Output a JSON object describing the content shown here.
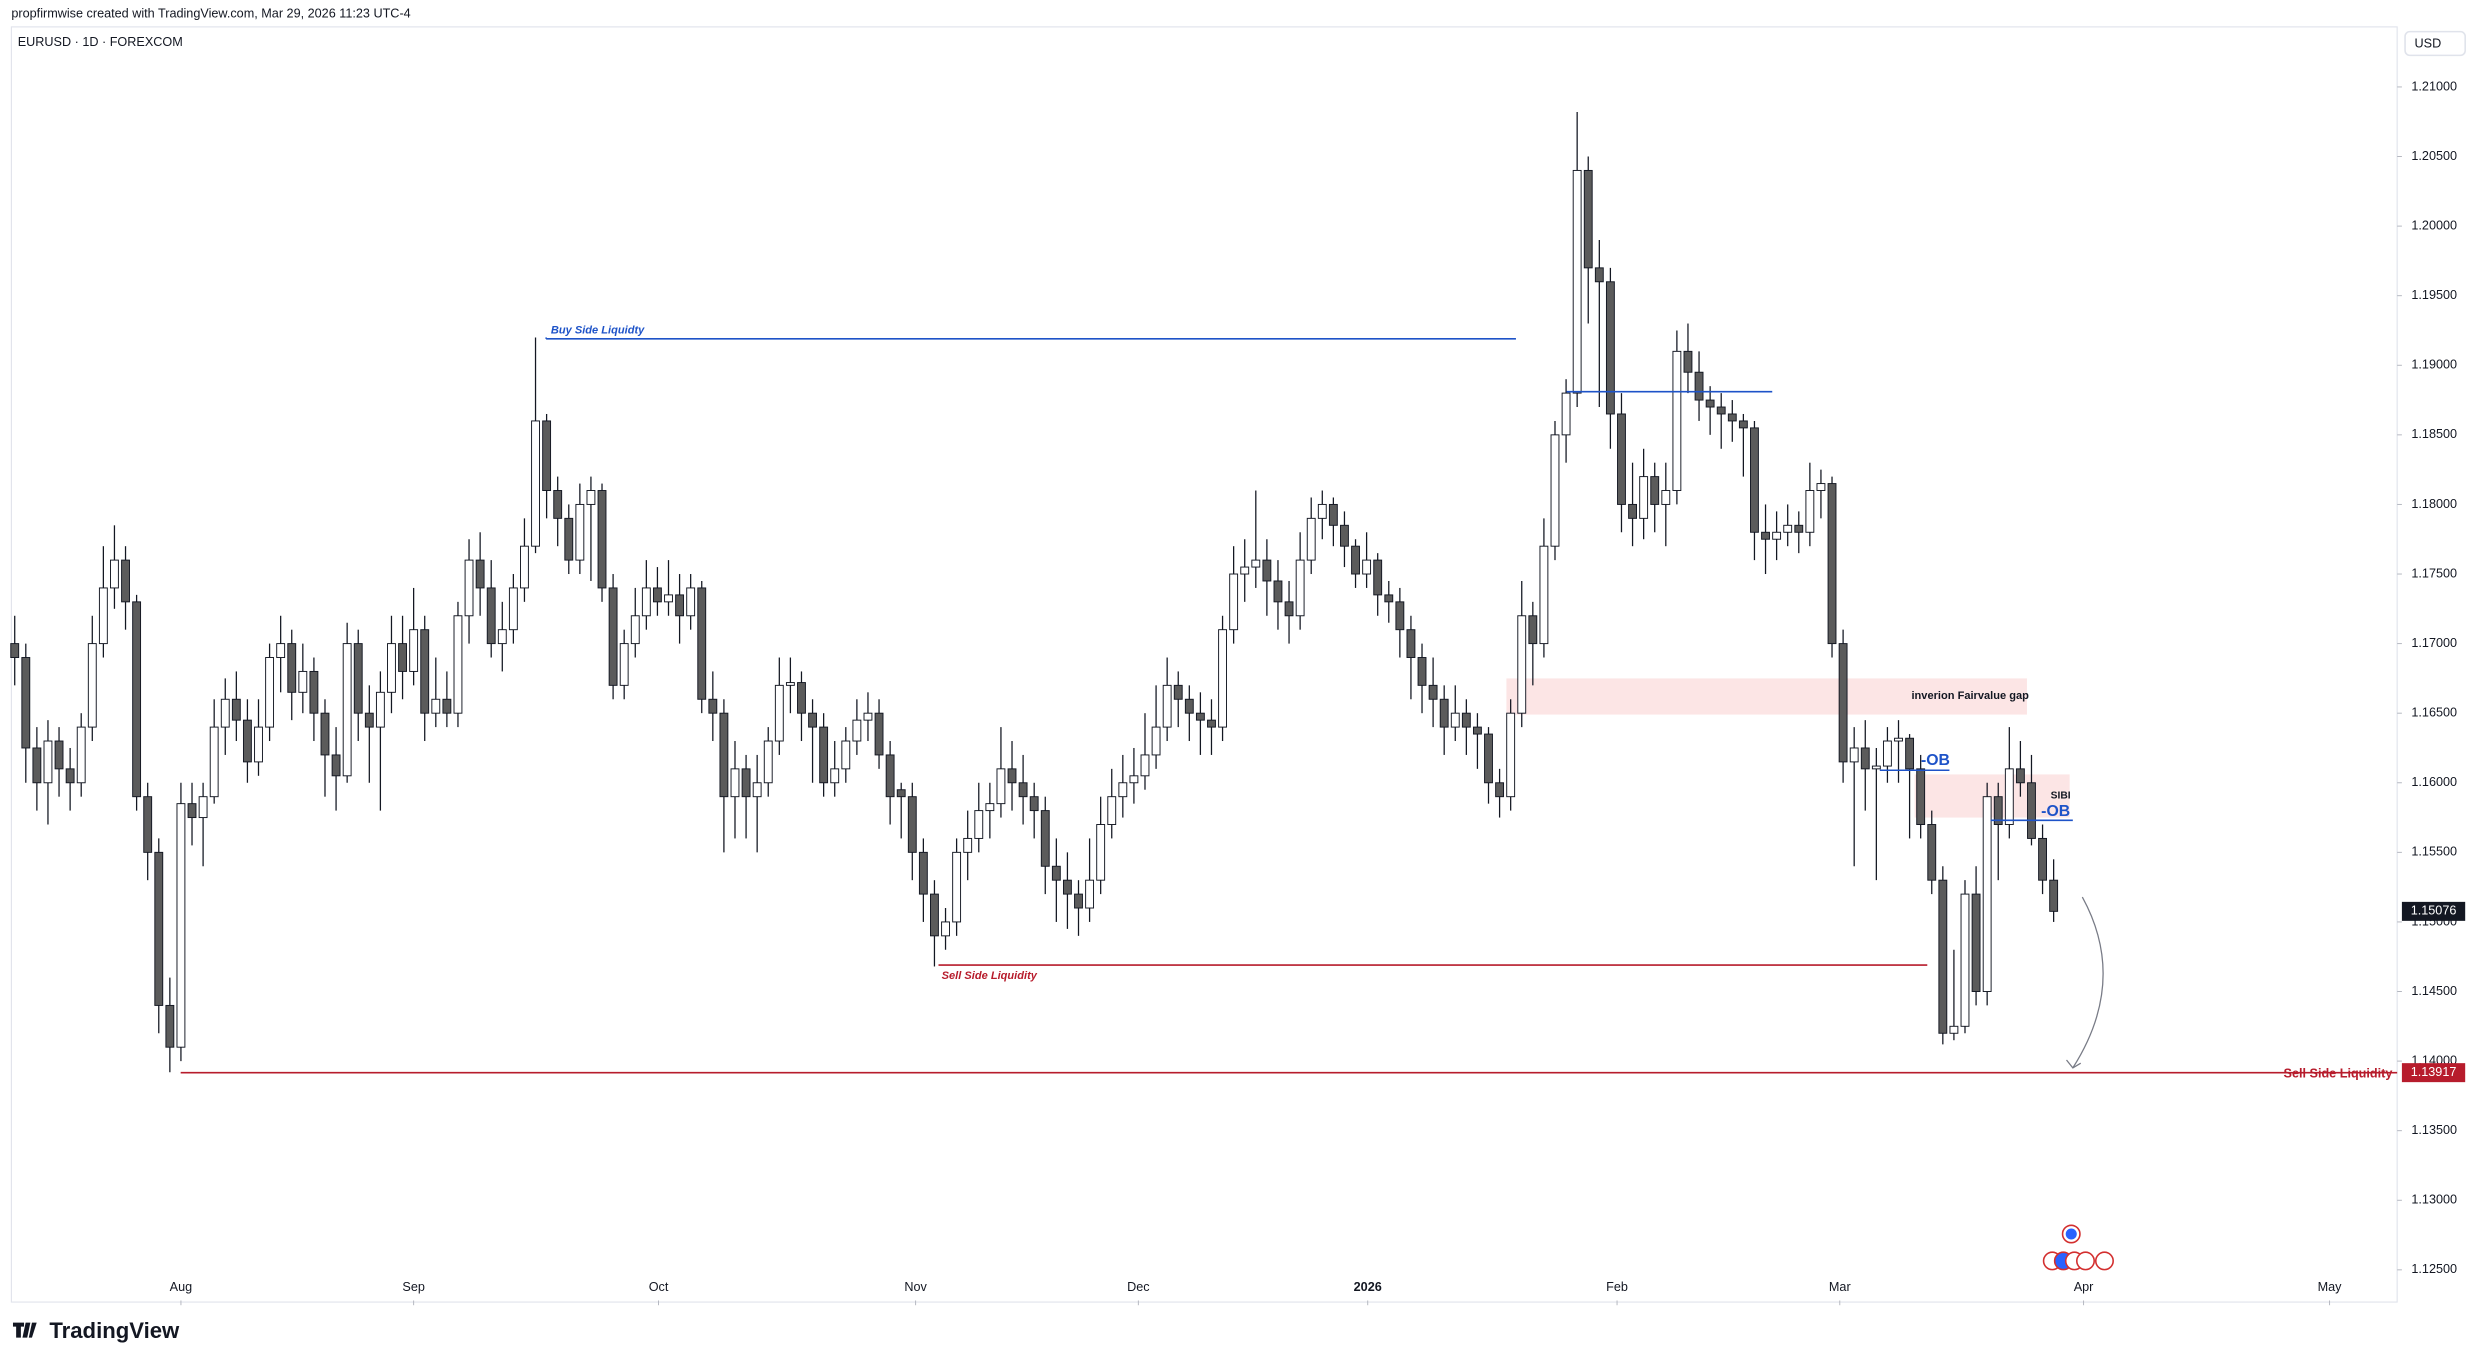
{
  "header": {
    "credit": "propfirmwise created with TradingView.com, Mar 29, 2026 11:23 UTC-4",
    "symbol": "EURUSD · 1D · FOREXCOM",
    "currency": "USD",
    "brand": "TradingView"
  },
  "chart_data": {
    "type": "candlestick",
    "up_color": "#ffffff",
    "down_color": "#5b5b5b",
    "wick_color": "#131722",
    "grid": false,
    "xlim": [
      -0.3,
      215
    ],
    "ylim": [
      1.1228,
      1.2117
    ],
    "xticks": [
      {
        "value": 15,
        "label": "Aug"
      },
      {
        "value": 36,
        "label": "Sep"
      },
      {
        "value": 58.1,
        "label": "Oct"
      },
      {
        "value": 81.3,
        "label": "Nov"
      },
      {
        "value": 101.4,
        "label": "Dec"
      },
      {
        "value": 122.1,
        "label": "2026"
      },
      {
        "value": 144.6,
        "label": "Feb"
      },
      {
        "value": 164.7,
        "label": "Mar"
      },
      {
        "value": 186.7,
        "label": "Apr"
      },
      {
        "value": 208.9,
        "label": "May"
      }
    ],
    "yticks": [
      {
        "value": 1.125,
        "label": "1.12500"
      },
      {
        "value": 1.13,
        "label": "1.13000"
      },
      {
        "value": 1.135,
        "label": "1.13500"
      },
      {
        "value": 1.14,
        "label": "1.14000"
      },
      {
        "value": 1.145,
        "label": "1.14500"
      },
      {
        "value": 1.15,
        "label": "1.15000"
      },
      {
        "value": 1.155,
        "label": "1.15500"
      },
      {
        "value": 1.16,
        "label": "1.16000"
      },
      {
        "value": 1.165,
        "label": "1.16500"
      },
      {
        "value": 1.17,
        "label": "1.17000"
      },
      {
        "value": 1.175,
        "label": "1.17500"
      },
      {
        "value": 1.18,
        "label": "1.18000"
      },
      {
        "value": 1.185,
        "label": "1.18500"
      },
      {
        "value": 1.19,
        "label": "1.19000"
      },
      {
        "value": 1.195,
        "label": "1.19500"
      },
      {
        "value": 1.2,
        "label": "1.20000"
      },
      {
        "value": 1.205,
        "label": "1.20500"
      },
      {
        "value": 1.21,
        "label": "1.21000"
      }
    ],
    "ohlc": [
      [
        1.17,
        1.172,
        1.167,
        1.169
      ],
      [
        1.169,
        1.17,
        1.16,
        1.1625
      ],
      [
        1.1625,
        1.164,
        1.158,
        1.16
      ],
      [
        1.16,
        1.1645,
        1.157,
        1.163
      ],
      [
        1.163,
        1.164,
        1.159,
        1.161
      ],
      [
        1.161,
        1.1625,
        1.158,
        1.16
      ],
      [
        1.16,
        1.165,
        1.159,
        1.164
      ],
      [
        1.164,
        1.172,
        1.163,
        1.17
      ],
      [
        1.17,
        1.177,
        1.169,
        1.174
      ],
      [
        1.174,
        1.1785,
        1.1725,
        1.176
      ],
      [
        1.176,
        1.177,
        1.171,
        1.173
      ],
      [
        1.173,
        1.1735,
        1.158,
        1.159
      ],
      [
        1.159,
        1.16,
        1.153,
        1.155
      ],
      [
        1.155,
        1.156,
        1.142,
        1.144
      ],
      [
        1.144,
        1.146,
        1.1392,
        1.141
      ],
      [
        1.141,
        1.16,
        1.14,
        1.1585
      ],
      [
        1.1585,
        1.16,
        1.1555,
        1.1575
      ],
      [
        1.1575,
        1.16,
        1.154,
        1.159
      ],
      [
        1.159,
        1.166,
        1.1585,
        1.164
      ],
      [
        1.164,
        1.1675,
        1.162,
        1.166
      ],
      [
        1.166,
        1.168,
        1.163,
        1.1645
      ],
      [
        1.1645,
        1.166,
        1.16,
        1.1615
      ],
      [
        1.1615,
        1.166,
        1.1605,
        1.164
      ],
      [
        1.164,
        1.17,
        1.163,
        1.169
      ],
      [
        1.169,
        1.172,
        1.1665,
        1.17
      ],
      [
        1.17,
        1.171,
        1.1645,
        1.1665
      ],
      [
        1.1665,
        1.17,
        1.165,
        1.168
      ],
      [
        1.168,
        1.169,
        1.163,
        1.165
      ],
      [
        1.165,
        1.166,
        1.159,
        1.162
      ],
      [
        1.162,
        1.164,
        1.158,
        1.1605
      ],
      [
        1.1605,
        1.1715,
        1.16,
        1.17
      ],
      [
        1.17,
        1.171,
        1.163,
        1.165
      ],
      [
        1.165,
        1.167,
        1.16,
        1.164
      ],
      [
        1.164,
        1.168,
        1.158,
        1.1665
      ],
      [
        1.1665,
        1.172,
        1.165,
        1.17
      ],
      [
        1.17,
        1.172,
        1.166,
        1.168
      ],
      [
        1.168,
        1.174,
        1.167,
        1.171
      ],
      [
        1.171,
        1.172,
        1.163,
        1.165
      ],
      [
        1.165,
        1.169,
        1.164,
        1.166
      ],
      [
        1.166,
        1.168,
        1.164,
        1.165
      ],
      [
        1.165,
        1.173,
        1.164,
        1.172
      ],
      [
        1.172,
        1.1775,
        1.17,
        1.176
      ],
      [
        1.176,
        1.178,
        1.172,
        1.174
      ],
      [
        1.174,
        1.176,
        1.169,
        1.17
      ],
      [
        1.17,
        1.173,
        1.168,
        1.171
      ],
      [
        1.171,
        1.175,
        1.17,
        1.174
      ],
      [
        1.174,
        1.179,
        1.173,
        1.177
      ],
      [
        1.177,
        1.192,
        1.1765,
        1.186
      ],
      [
        1.186,
        1.1865,
        1.179,
        1.181
      ],
      [
        1.181,
        1.182,
        1.177,
        1.179
      ],
      [
        1.179,
        1.18,
        1.175,
        1.176
      ],
      [
        1.176,
        1.1815,
        1.175,
        1.18
      ],
      [
        1.18,
        1.182,
        1.1745,
        1.181
      ],
      [
        1.181,
        1.1815,
        1.173,
        1.174
      ],
      [
        1.174,
        1.175,
        1.166,
        1.167
      ],
      [
        1.167,
        1.171,
        1.166,
        1.17
      ],
      [
        1.17,
        1.174,
        1.169,
        1.172
      ],
      [
        1.172,
        1.176,
        1.171,
        1.174
      ],
      [
        1.174,
        1.1755,
        1.172,
        1.173
      ],
      [
        1.173,
        1.176,
        1.172,
        1.1735
      ],
      [
        1.1735,
        1.175,
        1.17,
        1.172
      ],
      [
        1.172,
        1.175,
        1.171,
        1.174
      ],
      [
        1.174,
        1.1745,
        1.165,
        1.166
      ],
      [
        1.166,
        1.168,
        1.163,
        1.165
      ],
      [
        1.165,
        1.166,
        1.155,
        1.159
      ],
      [
        1.159,
        1.163,
        1.156,
        1.161
      ],
      [
        1.161,
        1.162,
        1.156,
        1.159
      ],
      [
        1.159,
        1.162,
        1.155,
        1.16
      ],
      [
        1.16,
        1.164,
        1.159,
        1.163
      ],
      [
        1.163,
        1.169,
        1.162,
        1.167
      ],
      [
        1.167,
        1.169,
        1.165,
        1.1672
      ],
      [
        1.1672,
        1.168,
        1.163,
        1.165
      ],
      [
        1.165,
        1.166,
        1.16,
        1.164
      ],
      [
        1.164,
        1.165,
        1.159,
        1.16
      ],
      [
        1.16,
        1.163,
        1.159,
        1.161
      ],
      [
        1.161,
        1.164,
        1.16,
        1.163
      ],
      [
        1.163,
        1.166,
        1.162,
        1.1645
      ],
      [
        1.1645,
        1.1665,
        1.163,
        1.165
      ],
      [
        1.165,
        1.166,
        1.161,
        1.162
      ],
      [
        1.162,
        1.163,
        1.157,
        1.159
      ],
      [
        1.1595,
        1.16,
        1.156,
        1.159
      ],
      [
        1.159,
        1.16,
        1.153,
        1.155
      ],
      [
        1.155,
        1.156,
        1.15,
        1.152
      ],
      [
        1.152,
        1.153,
        1.1468,
        1.149
      ],
      [
        1.149,
        1.151,
        1.148,
        1.15
      ],
      [
        1.15,
        1.156,
        1.149,
        1.155
      ],
      [
        1.155,
        1.158,
        1.153,
        1.156
      ],
      [
        1.156,
        1.16,
        1.155,
        1.158
      ],
      [
        1.158,
        1.16,
        1.156,
        1.1585
      ],
      [
        1.1585,
        1.164,
        1.1575,
        1.161
      ],
      [
        1.161,
        1.163,
        1.158,
        1.16
      ],
      [
        1.16,
        1.162,
        1.157,
        1.159
      ],
      [
        1.159,
        1.16,
        1.156,
        1.158
      ],
      [
        1.158,
        1.159,
        1.152,
        1.154
      ],
      [
        1.154,
        1.156,
        1.15,
        1.153
      ],
      [
        1.153,
        1.155,
        1.1495,
        1.152
      ],
      [
        1.152,
        1.153,
        1.149,
        1.151
      ],
      [
        1.151,
        1.156,
        1.15,
        1.153
      ],
      [
        1.153,
        1.159,
        1.152,
        1.157
      ],
      [
        1.157,
        1.161,
        1.156,
        1.159
      ],
      [
        1.159,
        1.162,
        1.1575,
        1.16
      ],
      [
        1.16,
        1.1625,
        1.1585,
        1.1605
      ],
      [
        1.1605,
        1.165,
        1.1595,
        1.162
      ],
      [
        1.162,
        1.167,
        1.161,
        1.164
      ],
      [
        1.164,
        1.169,
        1.163,
        1.167
      ],
      [
        1.167,
        1.168,
        1.164,
        1.166
      ],
      [
        1.166,
        1.167,
        1.163,
        1.165
      ],
      [
        1.165,
        1.1665,
        1.162,
        1.1645
      ],
      [
        1.1645,
        1.166,
        1.162,
        1.164
      ],
      [
        1.164,
        1.172,
        1.163,
        1.171
      ],
      [
        1.171,
        1.177,
        1.17,
        1.175
      ],
      [
        1.175,
        1.1775,
        1.173,
        1.1755
      ],
      [
        1.1755,
        1.181,
        1.174,
        1.176
      ],
      [
        1.176,
        1.1775,
        1.172,
        1.1745
      ],
      [
        1.1745,
        1.176,
        1.171,
        1.173
      ],
      [
        1.173,
        1.1745,
        1.17,
        1.172
      ],
      [
        1.172,
        1.178,
        1.171,
        1.176
      ],
      [
        1.176,
        1.1805,
        1.175,
        1.179
      ],
      [
        1.179,
        1.181,
        1.1775,
        1.18
      ],
      [
        1.18,
        1.1805,
        1.177,
        1.1785
      ],
      [
        1.1785,
        1.1795,
        1.1755,
        1.177
      ],
      [
        1.177,
        1.1775,
        1.174,
        1.175
      ],
      [
        1.175,
        1.178,
        1.174,
        1.176
      ],
      [
        1.176,
        1.1765,
        1.172,
        1.1735
      ],
      [
        1.1735,
        1.1745,
        1.1715,
        1.173
      ],
      [
        1.173,
        1.174,
        1.169,
        1.171
      ],
      [
        1.171,
        1.172,
        1.166,
        1.169
      ],
      [
        1.169,
        1.17,
        1.165,
        1.167
      ],
      [
        1.167,
        1.169,
        1.164,
        1.166
      ],
      [
        1.166,
        1.167,
        1.162,
        1.164
      ],
      [
        1.164,
        1.167,
        1.163,
        1.165
      ],
      [
        1.165,
        1.166,
        1.162,
        1.164
      ],
      [
        1.164,
        1.165,
        1.161,
        1.1635
      ],
      [
        1.1635,
        1.164,
        1.1585,
        1.16
      ],
      [
        1.16,
        1.161,
        1.1575,
        1.159
      ],
      [
        1.159,
        1.166,
        1.158,
        1.165
      ],
      [
        1.165,
        1.1745,
        1.164,
        1.172
      ],
      [
        1.172,
        1.173,
        1.167,
        1.17
      ],
      [
        1.17,
        1.179,
        1.169,
        1.177
      ],
      [
        1.177,
        1.186,
        1.176,
        1.185
      ],
      [
        1.185,
        1.189,
        1.183,
        1.188
      ],
      [
        1.188,
        1.2082,
        1.187,
        1.204
      ],
      [
        1.204,
        1.205,
        1.193,
        1.197
      ],
      [
        1.197,
        1.199,
        1.187,
        1.196
      ],
      [
        1.196,
        1.197,
        1.184,
        1.1865
      ],
      [
        1.1865,
        1.188,
        1.178,
        1.18
      ],
      [
        1.18,
        1.183,
        1.177,
        1.179
      ],
      [
        1.179,
        1.184,
        1.1775,
        1.182
      ],
      [
        1.182,
        1.183,
        1.178,
        1.18
      ],
      [
        1.18,
        1.183,
        1.177,
        1.181
      ],
      [
        1.181,
        1.1925,
        1.18,
        1.191
      ],
      [
        1.191,
        1.193,
        1.188,
        1.1895
      ],
      [
        1.1895,
        1.191,
        1.186,
        1.1875
      ],
      [
        1.1875,
        1.1885,
        1.185,
        1.187
      ],
      [
        1.187,
        1.188,
        1.184,
        1.1865
      ],
      [
        1.1865,
        1.1875,
        1.1845,
        1.186
      ],
      [
        1.186,
        1.1865,
        1.182,
        1.1855
      ],
      [
        1.1855,
        1.186,
        1.176,
        1.178
      ],
      [
        1.178,
        1.18,
        1.175,
        1.1775
      ],
      [
        1.1775,
        1.1795,
        1.176,
        1.178
      ],
      [
        1.178,
        1.18,
        1.177,
        1.1785
      ],
      [
        1.1785,
        1.1795,
        1.1765,
        1.178
      ],
      [
        1.178,
        1.183,
        1.177,
        1.181
      ],
      [
        1.181,
        1.1825,
        1.179,
        1.1815
      ],
      [
        1.1815,
        1.182,
        1.169,
        1.17
      ],
      [
        1.17,
        1.171,
        1.16,
        1.1615
      ],
      [
        1.1615,
        1.164,
        1.154,
        1.1625
      ],
      [
        1.1625,
        1.1645,
        1.158,
        1.161
      ],
      [
        1.161,
        1.1625,
        1.153,
        1.1612
      ],
      [
        1.1612,
        1.164,
        1.16,
        1.163
      ],
      [
        1.163,
        1.1645,
        1.16,
        1.1632
      ],
      [
        1.1632,
        1.1635,
        1.156,
        1.161
      ],
      [
        1.161,
        1.162,
        1.156,
        1.157
      ],
      [
        1.157,
        1.158,
        1.152,
        1.153
      ],
      [
        1.153,
        1.154,
        1.1412,
        1.142
      ],
      [
        1.142,
        1.148,
        1.1415,
        1.1425
      ],
      [
        1.1425,
        1.153,
        1.142,
        1.152
      ],
      [
        1.152,
        1.154,
        1.144,
        1.145
      ],
      [
        1.145,
        1.16,
        1.144,
        1.159
      ],
      [
        1.159,
        1.16,
        1.153,
        1.157
      ],
      [
        1.157,
        1.164,
        1.156,
        1.161
      ],
      [
        1.161,
        1.163,
        1.159,
        1.16
      ],
      [
        1.16,
        1.162,
        1.1555,
        1.156
      ],
      [
        1.156,
        1.157,
        1.152,
        1.153
      ],
      [
        1.153,
        1.1545,
        1.15,
        1.15076
      ]
    ],
    "annotations": [
      {
        "text": "Buy Side Liquidty",
        "level": 1.1919,
        "color": "#1e53c8"
      },
      {
        "level": 1.1881,
        "color": "#1e53c8"
      },
      {
        "text": "Sell Side Liquidity",
        "level": 1.1469,
        "color": "#b71c2c"
      },
      {
        "text": "Sell Side Liquidity",
        "level": 1.13917,
        "color": "#b71c2c"
      },
      {
        "text": "inverion Fairvalue gap",
        "top": 1.1675,
        "bottom": 1.1649,
        "color": "#fbe0e0"
      },
      {
        "text": "SIBI",
        "top": 1.1606,
        "bottom": 1.1575,
        "color": "#fbe0e0"
      },
      {
        "text": "-OB",
        "level": 1.1609,
        "color": "#1e53c8"
      },
      {
        "text": "-OB",
        "level": 1.1573,
        "color": "#1e53c8"
      }
    ]
  }
}
